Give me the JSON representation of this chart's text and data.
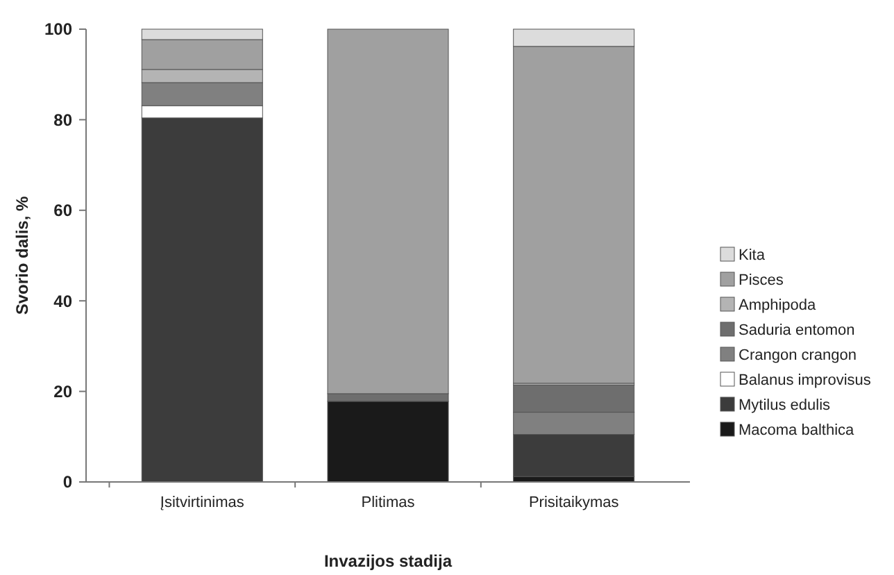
{
  "chart_data": {
    "type": "bar",
    "stacked": true,
    "xlabel": "Invazijos stadija",
    "ylabel": "Svorio dalis, %",
    "categories": [
      "Įsitvirtinimas",
      "Plitimas",
      "Prisitaikymas"
    ],
    "ylim": [
      0,
      100
    ],
    "yticks": [
      0,
      20,
      40,
      60,
      80,
      100
    ],
    "legend": "right",
    "series": [
      {
        "name": "Macoma balthica",
        "color": "#1a1a1a",
        "values": [
          0,
          17.8,
          1.2
        ]
      },
      {
        "name": "Mytilus edulis",
        "color": "#3c3c3c",
        "values": [
          80.4,
          0,
          9.3
        ]
      },
      {
        "name": "Balanus improvisus",
        "color": "#ffffff",
        "values": [
          2.7,
          0,
          0
        ]
      },
      {
        "name": "Crangon crangon",
        "color": "#808080",
        "values": [
          5.1,
          0,
          4.9
        ]
      },
      {
        "name": "Saduria entomon",
        "color": "#6e6e6e",
        "values": [
          0,
          1.7,
          6.0
        ]
      },
      {
        "name": "Amphipoda",
        "color": "#b4b4b4",
        "values": [
          2.9,
          0,
          0.4
        ]
      },
      {
        "name": "Pisces",
        "color": "#a0a0a0",
        "values": [
          6.6,
          80.5,
          74.4
        ]
      },
      {
        "name": "Kita",
        "color": "#dcdcdc",
        "values": [
          2.3,
          0,
          3.8
        ]
      }
    ]
  }
}
